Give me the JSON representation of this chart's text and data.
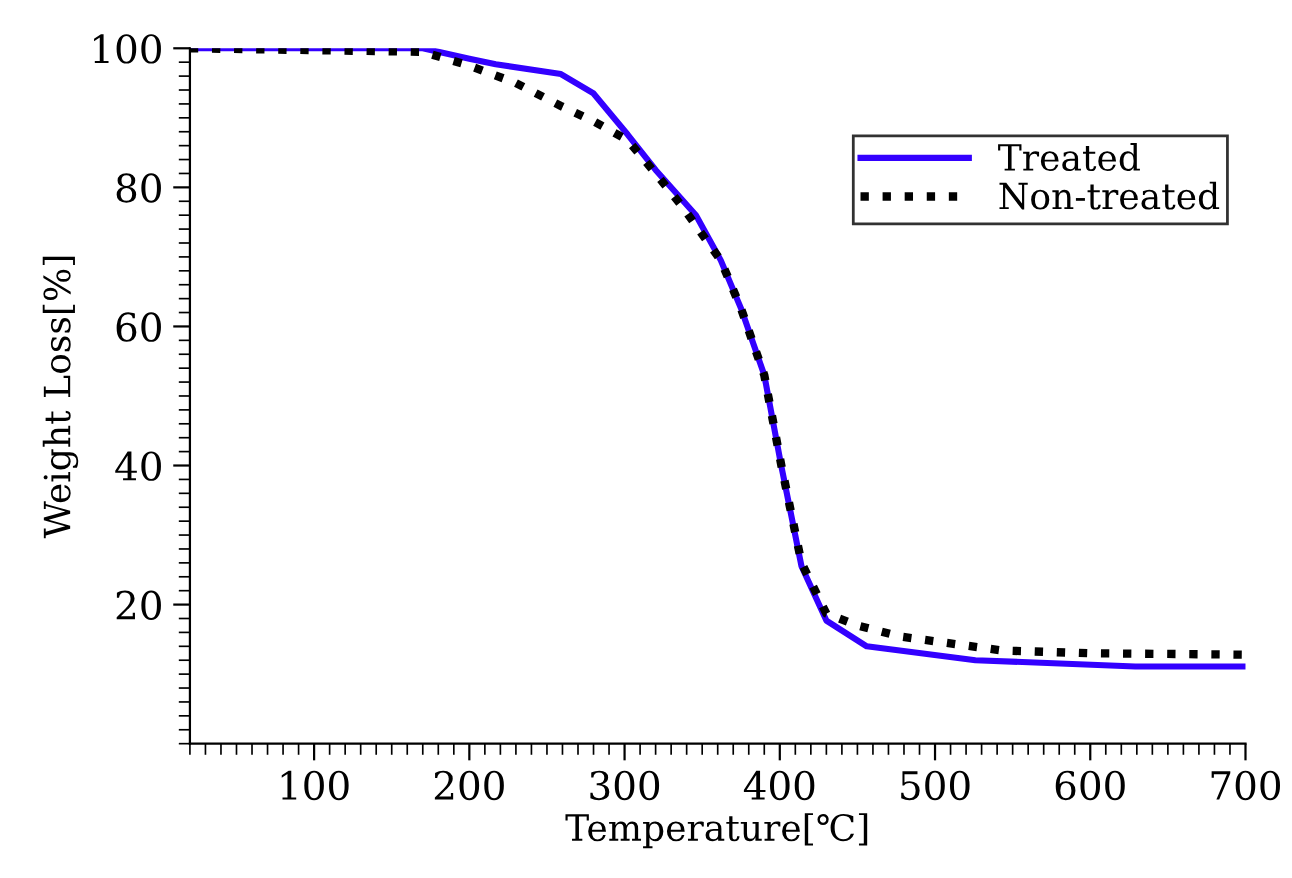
{
  "chart_data": {
    "type": "line",
    "xlabel": "Temperature[℃]",
    "ylabel": "Weight Loss[%]",
    "xlim": [
      20,
      700
    ],
    "xticks": [
      100,
      200,
      300,
      400,
      500,
      600,
      700
    ],
    "ylim": [
      0,
      100
    ],
    "yticks": [
      20,
      40,
      60,
      80,
      100
    ],
    "grid": false,
    "legend": "top right",
    "marker": "none",
    "series": [
      {
        "name": "Treated",
        "color": "#3300ff",
        "line_style": "solid",
        "x": [
          20,
          170,
          200,
          217,
          259,
          280,
          302,
          320,
          346,
          362,
          375,
          390,
          401,
          414,
          430,
          456,
          526,
          629,
          700
        ],
        "values": [
          100,
          100,
          98.5,
          97.7,
          96.3,
          93.5,
          87.6,
          82.5,
          76,
          69.5,
          62.6,
          53,
          39.9,
          25.5,
          17.7,
          14,
          12,
          11.1,
          11.1
        ]
      },
      {
        "name": "Non-treated",
        "color": "#000000",
        "line_style": "dotted",
        "x": [
          20,
          170,
          200,
          230,
          259,
          280,
          302,
          320,
          337,
          362,
          375,
          390,
          401,
          414,
          430,
          450,
          478,
          543,
          600,
          700
        ],
        "values": [
          100,
          99.5,
          97.5,
          95,
          91.7,
          89.5,
          86.8,
          82,
          77.3,
          69.5,
          62.6,
          53,
          40,
          26,
          18.7,
          17,
          15.4,
          13.4,
          13,
          12.8
        ]
      }
    ]
  }
}
